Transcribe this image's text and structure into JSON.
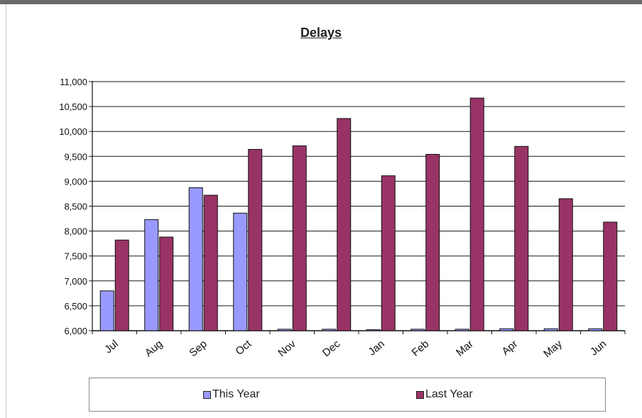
{
  "chart_data": {
    "type": "bar",
    "title": "Delays",
    "categories": [
      "Jul",
      "Aug",
      "Sep",
      "Oct",
      "Nov",
      "Dec",
      "Jan",
      "Feb",
      "Mar",
      "Apr",
      "May",
      "Jun"
    ],
    "series": [
      {
        "name": "This Year",
        "values": [
          6800,
          8230,
          8870,
          8360,
          6030,
          6030,
          6020,
          6030,
          6030,
          6040,
          6040,
          6040
        ],
        "color": "#9999ff"
      },
      {
        "name": "Last Year",
        "values": [
          7820,
          7880,
          8720,
          9640,
          9710,
          10260,
          9110,
          9540,
          10670,
          9700,
          8650,
          8180
        ],
        "color": "#993366"
      }
    ],
    "ylim": [
      6000,
      11000
    ],
    "yticks": [
      "6,000",
      "6,500",
      "7,000",
      "7,500",
      "8,000",
      "8,500",
      "9,000",
      "9,500",
      "10,000",
      "10,500",
      "11,000"
    ],
    "grid": true,
    "legend": "bottom",
    "xlabel": "",
    "ylabel": ""
  }
}
